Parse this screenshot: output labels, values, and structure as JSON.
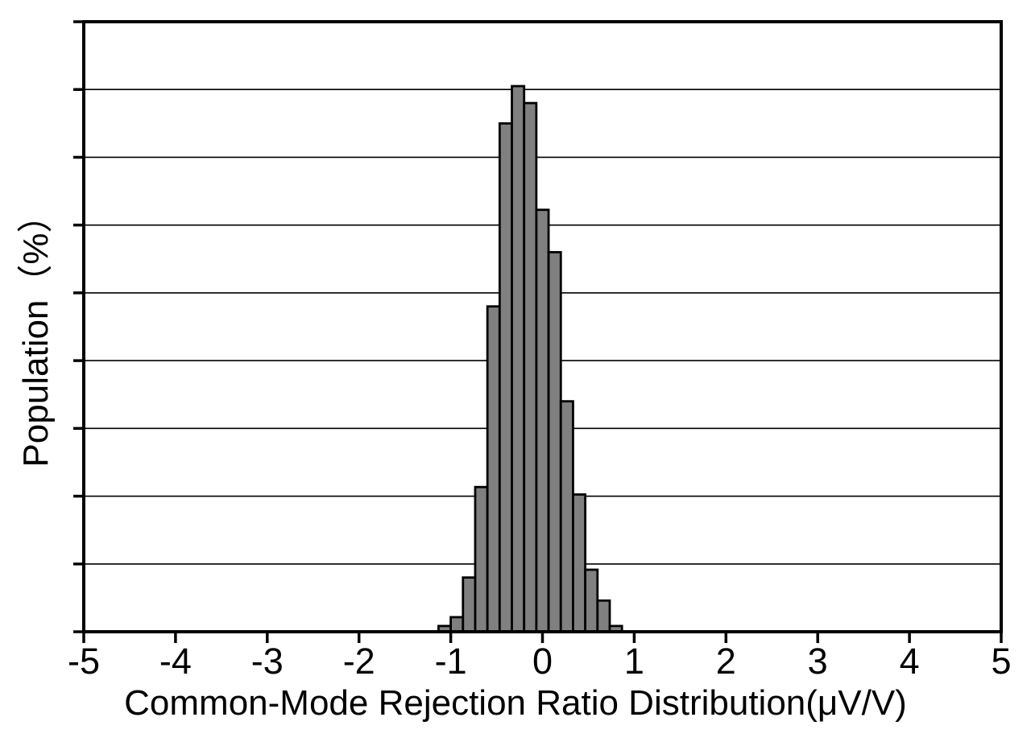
{
  "chart_data": {
    "type": "bar",
    "subtype": "histogram",
    "title": "",
    "xlabel": "Common-Mode Rejection Ratio Distribution(μV/V)",
    "ylabel": "Population（%）",
    "xlim": [
      -5,
      5
    ],
    "x_tick_labels": [
      "-5",
      "-4",
      "-3",
      "-2",
      "-1",
      "0",
      "1",
      "2",
      "3",
      "4",
      "5"
    ],
    "ylim_percent": [
      0,
      18
    ],
    "y_divisions": 9,
    "y_gridline_step_percent": 2,
    "y_tick_labels": [],
    "grid": "horizontal",
    "legend": "none",
    "bin_start": -1.1333,
    "bin_width": 0.1333,
    "values_percent": [
      0.17,
      0.43,
      1.6,
      4.27,
      9.6,
      15.0,
      16.1,
      15.6,
      12.45,
      11.2,
      6.8,
      4.05,
      1.83,
      0.92,
      0.17
    ],
    "bar_fill": "#808080",
    "bar_stroke": "#000000",
    "axis_color": "#000000",
    "background": "#ffffff"
  }
}
